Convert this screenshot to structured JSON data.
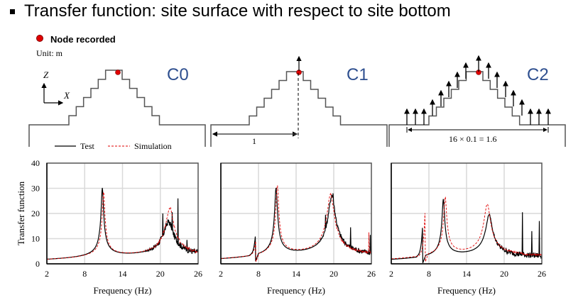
{
  "title": "Transfer function: site surface with respect to site bottom",
  "legend_node": "Node recorded",
  "unit": "Unit: m",
  "axes_labels": {
    "z": "Z",
    "x": "X"
  },
  "cases": [
    {
      "label": "C0"
    },
    {
      "label": "C1",
      "dimension": "1"
    },
    {
      "label": "C2",
      "dimension": "16 × 0.1 = 1.6"
    }
  ],
  "colors": {
    "test": "#000000",
    "simulation": "#e00000",
    "case_label": "#2e4f8f",
    "node": "#e00000",
    "grid": "#d9d9d9"
  },
  "chart_data": [
    {
      "type": "line",
      "title": "C0",
      "xlabel": "Frequency (Hz)",
      "ylabel": "Transfer function",
      "xlim": [
        2,
        26
      ],
      "ylim": [
        0,
        40
      ],
      "xticks": [
        2,
        8,
        14,
        20,
        26
      ],
      "yticks": [
        0,
        10,
        20,
        30,
        40
      ],
      "grid": true,
      "legend": {
        "position": "top-left",
        "entries": [
          "Test",
          "Simulation"
        ]
      },
      "series": [
        {
          "name": "Test",
          "style": "solid",
          "peaks": [
            {
              "f": 10.8,
              "amp": 28,
              "w": 0.38
            },
            {
              "f": 21.3,
              "amp": 14.5,
              "w": 1.5
            }
          ],
          "spikes": [
            {
              "f": 20.4,
              "v": 20
            },
            {
              "f": 21.9,
              "v": 20.5
            },
            {
              "f": 22.8,
              "v": 26
            },
            {
              "f": 24.2,
              "v": 9.5
            }
          ],
          "noise": 2.5
        },
        {
          "name": "Simulation",
          "style": "dashed",
          "peaks": [
            {
              "f": 11.0,
              "amp": 26.5,
              "w": 0.38
            },
            {
              "f": 21.5,
              "amp": 20,
              "w": 1.2
            }
          ],
          "spikes": [
            {
              "f": 21.6,
              "v": 22.5
            }
          ],
          "noise": 1.2
        }
      ]
    },
    {
      "type": "line",
      "title": "C1",
      "xlabel": "Frequency (Hz)",
      "xlim": [
        2,
        26
      ],
      "ylim": [
        0,
        40
      ],
      "xticks": [
        2,
        8,
        14,
        20,
        26
      ],
      "yticks": [
        0,
        10,
        20,
        30,
        40
      ],
      "grid": true,
      "series": [
        {
          "name": "Test",
          "style": "solid",
          "dip": {
            "f": 7.5,
            "amp": 7.5
          },
          "peaks": [
            {
              "f": 10.8,
              "amp": 27.5,
              "w": 0.42
            },
            {
              "f": 19.7,
              "amp": 25,
              "w": 1.1
            }
          ],
          "spikes": [
            {
              "f": 18.7,
              "v": 19.5
            },
            {
              "f": 19.9,
              "v": 28
            },
            {
              "f": 22.7,
              "v": 14.5
            },
            {
              "f": 25.8,
              "v": 11.5
            }
          ],
          "noise": 2.0
        },
        {
          "name": "Simulation",
          "style": "dashed",
          "dip": {
            "f": 7.6,
            "amp": 6.5
          },
          "peaks": [
            {
              "f": 11.0,
              "amp": 28.5,
              "w": 0.42
            },
            {
              "f": 19.5,
              "amp": 25.5,
              "w": 1.1
            }
          ],
          "spikes": [
            {
              "f": 25.6,
              "v": 12.5
            }
          ],
          "noise": 1.0
        }
      ]
    },
    {
      "type": "line",
      "title": "C2",
      "xlabel": "Frequency (Hz)",
      "xlim": [
        2,
        26
      ],
      "ylim": [
        0,
        40
      ],
      "xticks": [
        2,
        8,
        14,
        20,
        26
      ],
      "yticks": [
        0,
        10,
        20,
        30,
        40
      ],
      "grid": true,
      "series": [
        {
          "name": "Test",
          "style": "solid",
          "dip": {
            "f": 7.0,
            "amp": 12.5
          },
          "peaks": [
            {
              "f": 10.3,
              "amp": 23.5,
              "w": 0.4
            },
            {
              "f": 17.6,
              "amp": 17.5,
              "w": 1.0
            }
          ],
          "spikes": [
            {
              "f": 22.9,
              "v": 20.5
            },
            {
              "f": 24.4,
              "v": 13
            },
            {
              "f": 25.6,
              "v": 17
            }
          ],
          "noise": 2.2
        },
        {
          "name": "Simulation",
          "style": "dashed",
          "dip": {
            "f": 7.4,
            "amp": 18.5
          },
          "peaks": [
            {
              "f": 10.6,
              "amp": 24,
              "w": 0.45
            },
            {
              "f": 17.3,
              "amp": 21.5,
              "w": 1.0
            }
          ],
          "spikes": [],
          "noise": 0.8
        }
      ]
    }
  ]
}
